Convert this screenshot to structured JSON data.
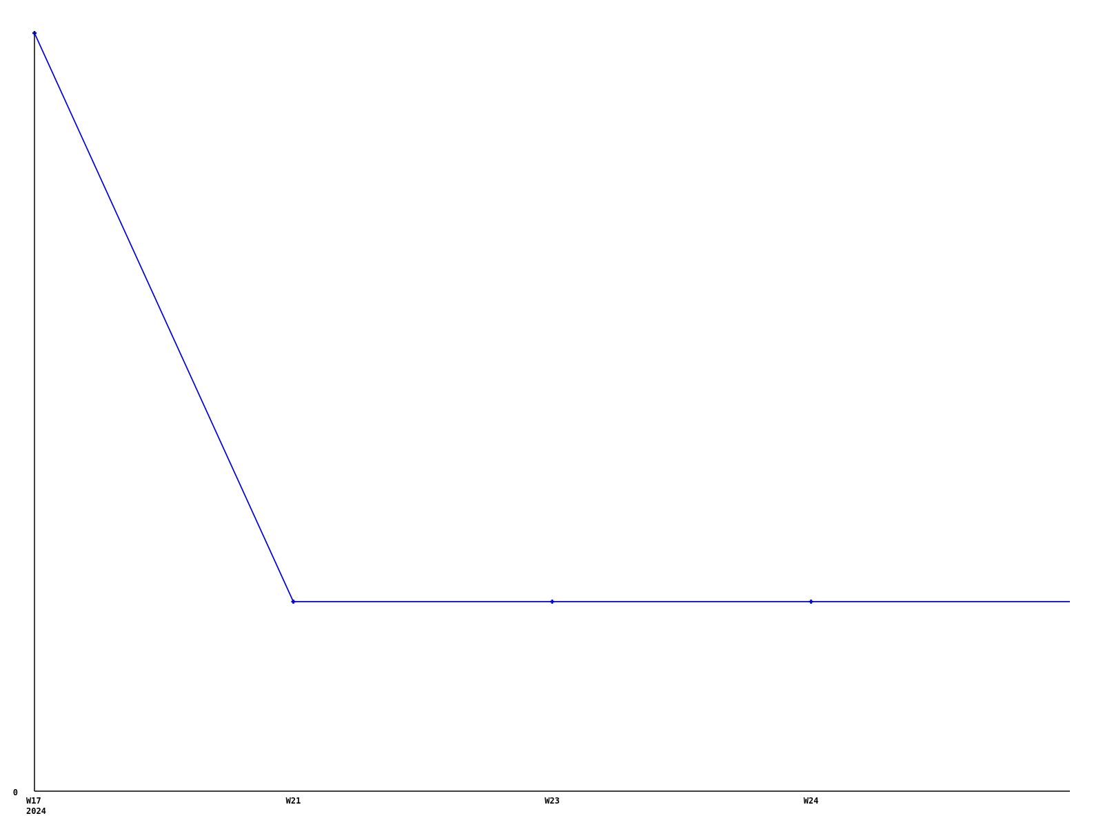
{
  "page": {
    "background": "#ffffff"
  },
  "chart_data": {
    "type": "line",
    "x": [
      "W17",
      "W21",
      "W23",
      "W24",
      ""
    ],
    "values": [
      4,
      1,
      1,
      1,
      1
    ],
    "markers": [
      true,
      true,
      true,
      true,
      false
    ],
    "x_tick_labels": [
      "W17",
      "W21",
      "W23",
      "W24"
    ],
    "x_first_tick_sub_label": "2024",
    "y_tick_labels": [
      "0"
    ],
    "ylim": [
      0,
      4
    ],
    "xlabel": "",
    "ylabel": "",
    "title": "",
    "legend_position": "none",
    "grid": false,
    "line_color": "#0000cc",
    "marker_color": "#0000cc",
    "axis_color": "#000000",
    "text_color": "#000000"
  }
}
